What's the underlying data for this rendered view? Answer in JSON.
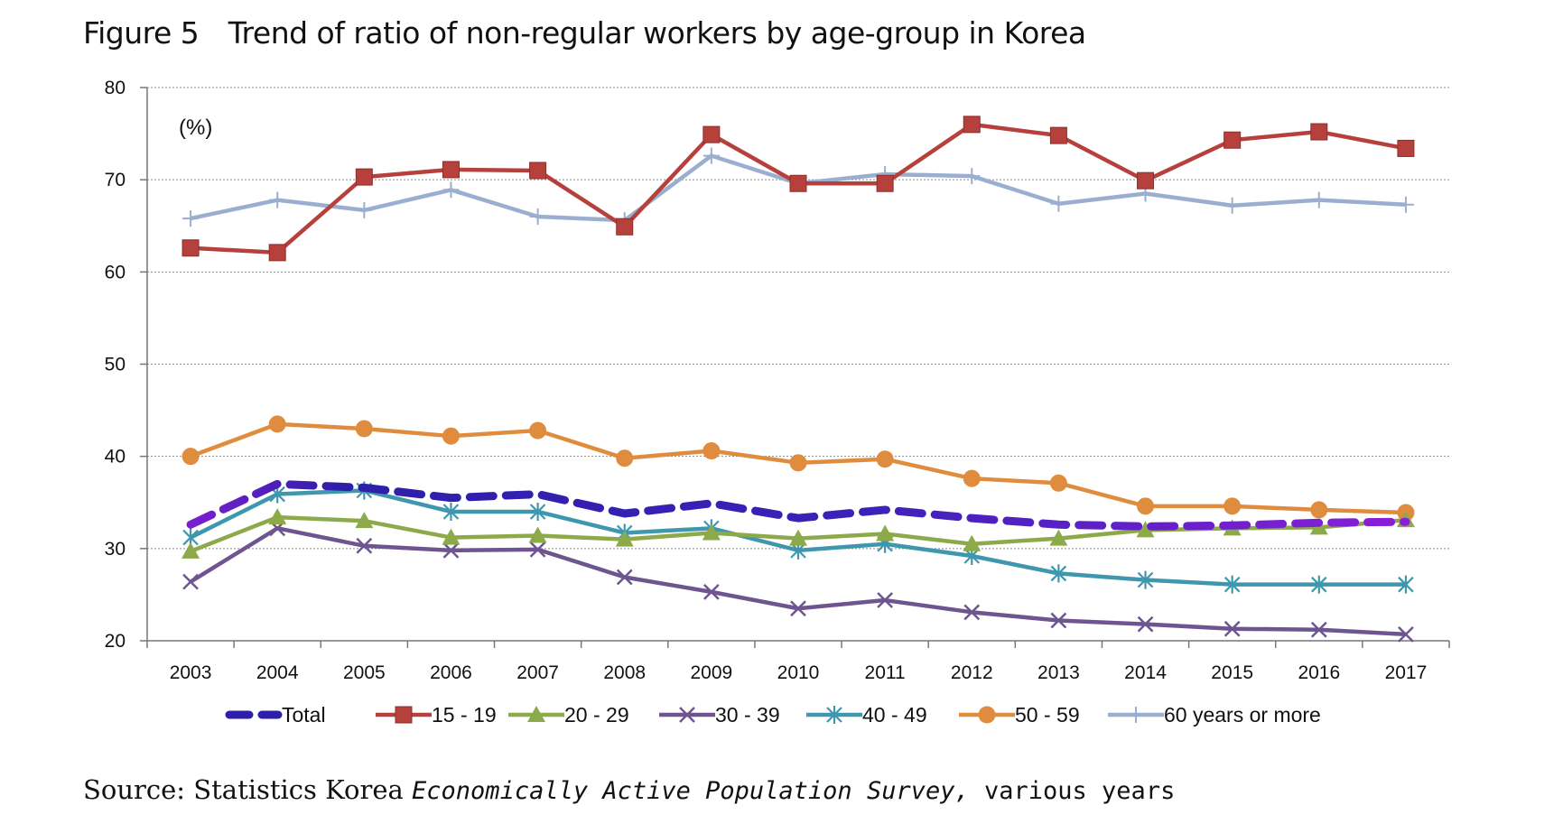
{
  "figure": {
    "title": "Figure 5　Trend of ratio of non-regular workers by age-group in Korea",
    "source": {
      "prefix": "Source: Statistics Korea ",
      "italic": "Economically Active Population Survey,",
      "suffix": " various years"
    }
  },
  "chart_data": {
    "type": "line",
    "unit_label": "(%)",
    "ylim": [
      20,
      80
    ],
    "yticks": [
      20,
      30,
      40,
      50,
      60,
      70,
      80
    ],
    "grid": true,
    "legend_position": "bottom",
    "x": [
      "2003",
      "2004",
      "2005",
      "2006",
      "2007",
      "2008",
      "2009",
      "2010",
      "2011",
      "2012",
      "2013",
      "2014",
      "2015",
      "2016",
      "2017"
    ],
    "series": [
      {
        "name": "Total",
        "color": "#2E1FA8",
        "color_end": "#7A1FCF",
        "marker": "none",
        "dashed": true,
        "values": [
          32.6,
          37.0,
          36.6,
          35.5,
          35.9,
          33.8,
          34.9,
          33.3,
          34.2,
          33.3,
          32.6,
          32.4,
          32.5,
          32.8,
          32.9
        ]
      },
      {
        "name": "15 - 19",
        "color": "#B5403C",
        "marker": "square",
        "values": [
          62.6,
          62.1,
          70.3,
          71.1,
          71.0,
          64.9,
          74.9,
          69.6,
          69.6,
          76.0,
          74.8,
          69.9,
          74.3,
          75.2,
          73.4
        ]
      },
      {
        "name": "20 - 29",
        "color": "#8DAA4B",
        "marker": "triangle",
        "values": [
          29.7,
          33.4,
          33.0,
          31.2,
          31.4,
          31.0,
          31.7,
          31.1,
          31.6,
          30.5,
          31.1,
          32.0,
          32.2,
          32.3,
          33.1
        ]
      },
      {
        "name": "30 - 39",
        "color": "#6E5590",
        "marker": "x",
        "values": [
          26.4,
          32.2,
          30.3,
          29.8,
          29.9,
          26.9,
          25.3,
          23.5,
          24.4,
          23.1,
          22.2,
          21.8,
          21.3,
          21.2,
          20.7
        ]
      },
      {
        "name": "40 - 49",
        "color": "#3E97AD",
        "marker": "asterisk",
        "values": [
          31.2,
          35.9,
          36.3,
          34.0,
          34.0,
          31.7,
          32.2,
          29.8,
          30.5,
          29.2,
          27.3,
          26.6,
          26.1,
          26.1,
          26.1
        ]
      },
      {
        "name": "50 - 59",
        "color": "#E08C3E",
        "marker": "circle",
        "values": [
          40.0,
          43.5,
          43.0,
          42.2,
          42.8,
          39.8,
          40.6,
          39.3,
          39.7,
          37.6,
          37.1,
          34.6,
          34.6,
          34.2,
          33.9
        ]
      },
      {
        "name": "60 years or more",
        "color": "#9AAFD0",
        "marker": "plus",
        "values": [
          65.8,
          67.8,
          66.7,
          68.9,
          66.0,
          65.6,
          72.6,
          69.6,
          70.6,
          70.4,
          67.4,
          68.5,
          67.2,
          67.8,
          67.3
        ]
      }
    ]
  }
}
